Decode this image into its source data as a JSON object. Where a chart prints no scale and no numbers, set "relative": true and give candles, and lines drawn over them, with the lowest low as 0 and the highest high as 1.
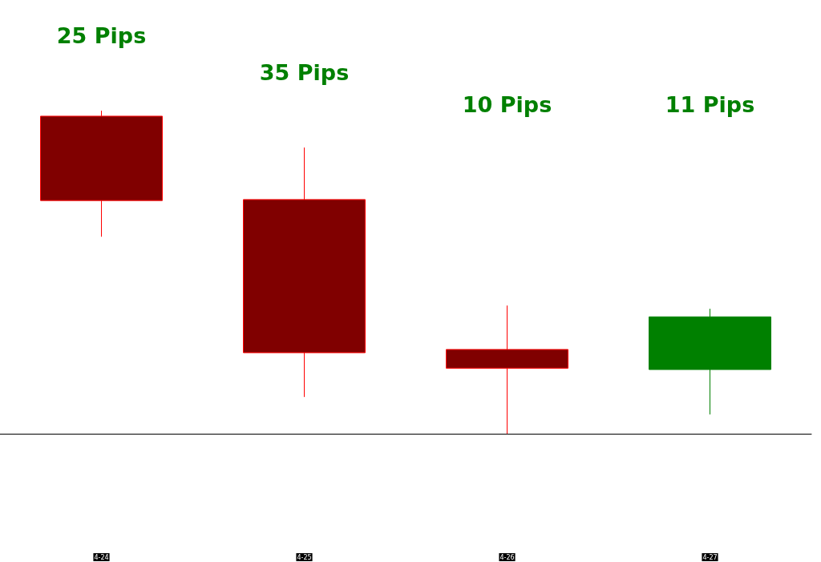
{
  "chart_data": {
    "type": "candlestick",
    "relative": true,
    "categories": [
      "4-24",
      "4-25",
      "4-26",
      "4-27"
    ],
    "ohlc": [
      [
        0.983,
        1.0,
        0.61,
        0.722
      ],
      [
        0.725,
        0.886,
        0.114,
        0.251
      ],
      [
        0.261,
        0.397,
        0.0,
        0.203
      ],
      [
        0.199,
        0.387,
        0.06,
        0.362
      ]
    ],
    "annotations": [
      "25 Pips",
      "35 Pips",
      "10 Pips",
      "11 Pips"
    ],
    "grid": false
  }
}
